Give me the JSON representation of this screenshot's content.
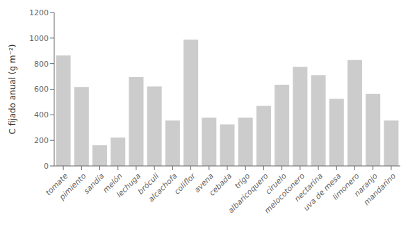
{
  "chart_data": {
    "type": "bar",
    "ylabel": "C fijado anual (g m⁻²)",
    "categories": [
      "tomate",
      "pimiento",
      "sandía",
      "melón",
      "lechuga",
      "bróculi",
      "alcachofa",
      "coliflor",
      "avena",
      "cebada",
      "trigo",
      "albaricoquero",
      "ciruelo",
      "melocotonero",
      "nectarina",
      "uva de mesa",
      "limonero",
      "naranjo",
      "mandarino"
    ],
    "values": [
      865,
      618,
      162,
      222,
      695,
      622,
      355,
      988,
      378,
      325,
      378,
      470,
      635,
      775,
      710,
      525,
      830,
      565,
      355
    ],
    "color": "#cccccc",
    "ylim": [
      0,
      1200
    ],
    "yticks": [
      0,
      200,
      400,
      600,
      800,
      1000,
      1200
    ],
    "grid": false
  }
}
